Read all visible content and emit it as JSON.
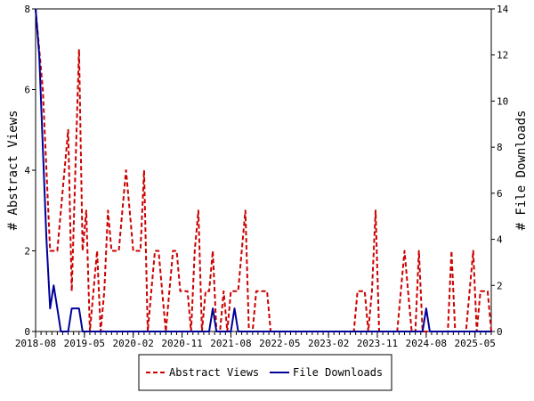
{
  "chart_data": {
    "type": "line",
    "title": "",
    "y_left_label": "# Abstract Views",
    "y_right_label": "# File Downloads",
    "y_left_range": [
      0,
      8
    ],
    "y_right_range": [
      0,
      14
    ],
    "y_left_ticks": [
      "0",
      "2",
      "4",
      "6",
      "8"
    ],
    "y_right_ticks": [
      "0",
      "2",
      "4",
      "6",
      "8",
      "10",
      "12",
      "14"
    ],
    "x_ticks": [
      "2018-08",
      "2019-05",
      "2020-02",
      "2020-11",
      "2021-08",
      "2022-05",
      "2023-02",
      "2023-11",
      "2024-08",
      "2025-05"
    ],
    "x_range": [
      "2018-08",
      "2025-08"
    ],
    "grid": false,
    "legend_position": "bottom",
    "series": [
      {
        "name": "Abstract Views",
        "axis": "left",
        "color": "#cc0000",
        "style": "dashed",
        "values": [
          8,
          7,
          6,
          4,
          2,
          2,
          2,
          3,
          4,
          5,
          1,
          4,
          7,
          2,
          3,
          0,
          1,
          2,
          0,
          1,
          3,
          2,
          2,
          2,
          3,
          4,
          3,
          2,
          2,
          2,
          4,
          0,
          1,
          2,
          2,
          1,
          0,
          1,
          2,
          2,
          1,
          1,
          1,
          0,
          2,
          3,
          0,
          1,
          1,
          2,
          0,
          0,
          1,
          0,
          1,
          1,
          1,
          2,
          3,
          0,
          0,
          1,
          1,
          1,
          1,
          0,
          0,
          0,
          0,
          0,
          0,
          0,
          0,
          0,
          0,
          0,
          0,
          0,
          0,
          0,
          0,
          0,
          0,
          0,
          0,
          0,
          0,
          0,
          0,
          1,
          1,
          1,
          0,
          1,
          3,
          0,
          0,
          0,
          0,
          0,
          0,
          1,
          2,
          1,
          0,
          0,
          2,
          0,
          0,
          0,
          0,
          0,
          0,
          0,
          0,
          2,
          0,
          0,
          0,
          0,
          1,
          2,
          0,
          1,
          1,
          1,
          0
        ]
      },
      {
        "name": "File Downloads",
        "axis": "right",
        "color": "#000099",
        "style": "solid",
        "values": [
          14,
          12,
          8,
          4,
          1,
          2,
          1,
          0,
          0,
          0,
          1,
          1,
          1,
          0,
          0,
          0,
          0,
          0,
          0,
          0,
          0,
          0,
          0,
          0,
          0,
          0,
          0,
          0,
          0,
          0,
          0,
          0,
          0,
          0,
          0,
          0,
          0,
          0,
          0,
          0,
          0,
          0,
          0,
          0,
          0,
          0,
          0,
          0,
          0,
          1,
          0,
          0,
          0,
          0,
          0,
          1,
          0,
          0,
          0,
          0,
          0,
          0,
          0,
          0,
          0,
          0,
          0,
          0,
          0,
          0,
          0,
          0,
          0,
          0,
          0,
          0,
          0,
          0,
          0,
          0,
          0,
          0,
          0,
          0,
          0,
          0,
          0,
          0,
          0,
          0,
          0,
          0,
          0,
          0,
          0,
          0,
          0,
          0,
          0,
          0,
          0,
          0,
          0,
          0,
          0,
          0,
          0,
          0,
          1,
          0,
          0,
          0,
          0,
          0,
          0,
          0,
          0,
          0,
          0,
          0,
          0,
          0,
          0,
          0,
          0,
          0,
          0
        ]
      }
    ]
  }
}
